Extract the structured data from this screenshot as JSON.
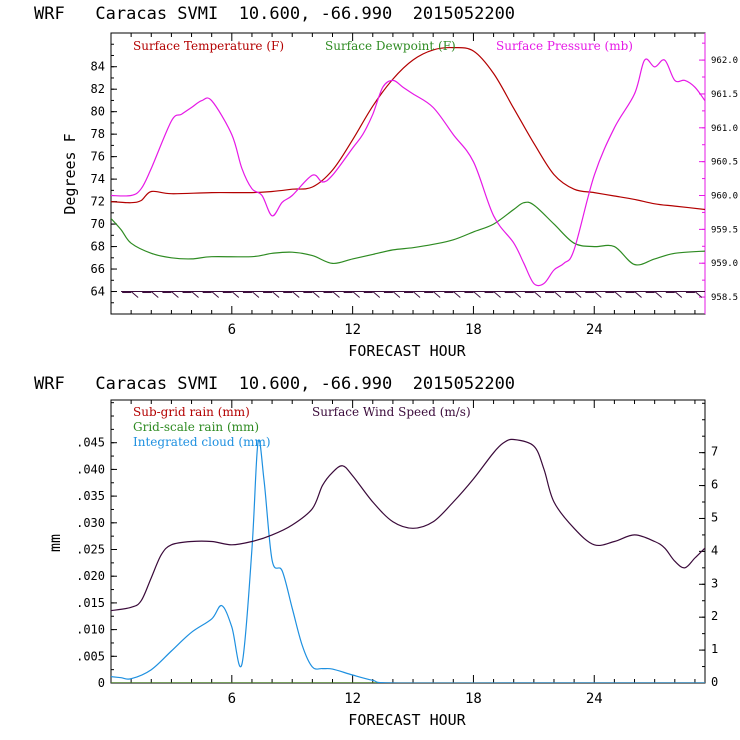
{
  "colors": {
    "temperature": "#b30000",
    "dewpoint": "#2e8b22",
    "pressure": "#e619e6",
    "subgrid_rain": "#b30000",
    "gridscale_rain": "#2e8b22",
    "cloud": "#1e90e0",
    "wind": "#3a0a3a"
  },
  "chart_data": [
    {
      "type": "line",
      "title": "WRF   Caracas SVMI  10.600, -66.990  2015052200",
      "xlabel": "FORECAST HOUR",
      "ylabel": "Degrees F",
      "xlim": [
        0,
        29.5
      ],
      "ylim": [
        62,
        87
      ],
      "y2lim": [
        958.25,
        962.4
      ],
      "xticks": [
        "6",
        "12",
        "18",
        "24"
      ],
      "xtick_values": [
        6,
        12,
        18,
        24
      ],
      "yticks": [
        "64",
        "66",
        "68",
        "70",
        "72",
        "74",
        "76",
        "78",
        "80",
        "82",
        "84"
      ],
      "ytick_values": [
        64,
        66,
        68,
        70,
        72,
        74,
        76,
        78,
        80,
        82,
        84
      ],
      "y2ticks": [
        "958.5",
        "959.0",
        "959.5",
        "960.0",
        "960.5",
        "961.0",
        "961.5",
        "962.0"
      ],
      "y2tick_values": [
        958.5,
        959.0,
        959.5,
        960.0,
        960.5,
        961.0,
        961.5,
        962.0
      ],
      "legend": [
        "Surface Temperature (F)",
        "Surface Dewpoint (F)",
        "Surface Pressure (mb)"
      ],
      "series": [
        {
          "name": "Surface Temperature (F)",
          "axis": "left",
          "x": [
            0,
            1,
            1.5,
            2,
            3,
            5,
            7,
            8,
            9,
            10,
            11,
            12,
            13,
            14,
            15,
            16,
            17,
            18,
            19,
            20,
            21,
            22,
            23,
            24,
            25,
            26,
            27,
            28,
            29.5
          ],
          "values": [
            72.0,
            71.9,
            72.1,
            72.9,
            72.7,
            72.8,
            72.8,
            72.9,
            73.1,
            73.3,
            74.8,
            77.5,
            80.5,
            82.9,
            84.6,
            85.5,
            85.7,
            85.4,
            83.4,
            80.3,
            77.2,
            74.4,
            73.1,
            72.8,
            72.5,
            72.2,
            71.8,
            71.6,
            71.3
          ]
        },
        {
          "name": "Surface Dewpoint (F)",
          "axis": "left",
          "x": [
            0,
            0.5,
            1,
            2,
            3,
            4,
            5,
            7,
            8,
            9,
            10,
            11,
            12,
            13,
            14,
            15,
            16,
            17,
            18,
            19,
            20,
            20.5,
            21,
            22,
            23,
            24,
            25,
            26,
            27,
            28,
            29.5
          ],
          "values": [
            70.5,
            69.5,
            68.3,
            67.4,
            67.0,
            66.9,
            67.1,
            67.1,
            67.4,
            67.5,
            67.2,
            66.5,
            66.9,
            67.3,
            67.7,
            67.9,
            68.2,
            68.6,
            69.3,
            70.0,
            71.3,
            71.9,
            71.7,
            70.0,
            68.3,
            68.0,
            68.0,
            66.4,
            66.9,
            67.4,
            67.6
          ]
        },
        {
          "name": "Surface Pressure (mb)",
          "axis": "right",
          "x": [
            0,
            1,
            1.5,
            2,
            3,
            3.5,
            4,
            4.5,
            5,
            6,
            6.5,
            7,
            7.5,
            8,
            8.5,
            9,
            10,
            10.5,
            11,
            12,
            12.5,
            13,
            13.5,
            14,
            14.5,
            15,
            16,
            17,
            18,
            19,
            20,
            20.5,
            21,
            21.5,
            22,
            22.5,
            23,
            24,
            25,
            26,
            26.5,
            27,
            27.5,
            28,
            28.5,
            29,
            29.5
          ],
          "values": [
            960.0,
            960.0,
            960.1,
            960.4,
            961.1,
            961.2,
            961.3,
            961.4,
            961.4,
            960.9,
            960.4,
            960.1,
            960.0,
            959.7,
            959.9,
            960.0,
            960.3,
            960.2,
            960.3,
            960.7,
            960.9,
            961.2,
            961.6,
            961.7,
            961.6,
            961.5,
            961.3,
            960.9,
            960.5,
            959.7,
            959.3,
            959.0,
            958.7,
            958.7,
            958.9,
            959.0,
            959.2,
            960.3,
            961.0,
            961.5,
            962.0,
            961.9,
            962.0,
            961.7,
            961.7,
            961.6,
            961.4
          ]
        }
      ],
      "wind_barbs": {
        "description": "Wind barbs along the 64 F line (calm / light winds)",
        "x": [
          1,
          2,
          3,
          4,
          5,
          6,
          7,
          8,
          9,
          10,
          11,
          12,
          13,
          14,
          15,
          16,
          17,
          18,
          19,
          20,
          21,
          22,
          23,
          24,
          25,
          26,
          27,
          28,
          29
        ]
      }
    },
    {
      "type": "line",
      "title": "WRF   Caracas SVMI  10.600, -66.990  2015052200",
      "xlabel": "FORECAST HOUR",
      "ylabel": "mm",
      "xlim": [
        0,
        29.5
      ],
      "ylim": [
        0,
        0.053
      ],
      "y2lim": [
        0,
        8.6
      ],
      "xticks": [
        "6",
        "12",
        "18",
        "24"
      ],
      "xtick_values": [
        6,
        12,
        18,
        24
      ],
      "yticks": [
        "0",
        ".005",
        ".010",
        ".015",
        ".020",
        ".025",
        ".030",
        ".035",
        ".040",
        ".045"
      ],
      "ytick_values": [
        0,
        0.005,
        0.01,
        0.015,
        0.02,
        0.025,
        0.03,
        0.035,
        0.04,
        0.045
      ],
      "y2ticks": [
        "0",
        "1",
        "2",
        "3",
        "4",
        "5",
        "6",
        "7"
      ],
      "y2tick_values": [
        0,
        1,
        2,
        3,
        4,
        5,
        6,
        7
      ],
      "legend": [
        "Sub-grid rain (mm)",
        "Grid-scale rain (mm)",
        "Integrated cloud (mm)",
        "Surface Wind Speed (m/s)"
      ],
      "series": [
        {
          "name": "Sub-grid rain (mm)",
          "axis": "left",
          "x": [
            0,
            29.5
          ],
          "values": [
            0,
            0
          ]
        },
        {
          "name": "Grid-scale rain (mm)",
          "axis": "left",
          "x": [
            0,
            29.5
          ],
          "values": [
            0,
            0
          ]
        },
        {
          "name": "Integrated cloud (mm)",
          "axis": "left",
          "x": [
            0,
            0.5,
            1,
            2,
            3,
            4,
            5,
            5.5,
            6,
            6.5,
            7,
            7.3,
            7.6,
            8,
            8.5,
            9,
            9.5,
            10,
            10.5,
            11,
            12,
            13,
            14,
            20,
            24,
            29.5
          ],
          "values": [
            0.0012,
            0.001,
            0.0008,
            0.0025,
            0.006,
            0.0095,
            0.012,
            0.0145,
            0.0105,
            0.0035,
            0.025,
            0.045,
            0.038,
            0.023,
            0.021,
            0.014,
            0.007,
            0.003,
            0.0027,
            0.0026,
            0.0015,
            0.0005,
            0.0,
            0.0,
            0.0,
            0.0
          ]
        },
        {
          "name": "Surface Wind Speed (m/s)",
          "axis": "right",
          "x": [
            0,
            1,
            1.5,
            2,
            2.5,
            3,
            4,
            5,
            6,
            7,
            8,
            9,
            10,
            10.5,
            11,
            11.5,
            12,
            13,
            14,
            15,
            16,
            17,
            18,
            19,
            19.5,
            20,
            21,
            21.5,
            22,
            23,
            24,
            25,
            26,
            27,
            27.5,
            28,
            28.5,
            29,
            29.5
          ],
          "values": [
            2.2,
            2.3,
            2.5,
            3.2,
            3.9,
            4.2,
            4.3,
            4.3,
            4.2,
            4.3,
            4.5,
            4.8,
            5.3,
            6.0,
            6.4,
            6.6,
            6.3,
            5.5,
            4.9,
            4.7,
            4.9,
            5.5,
            6.2,
            7.0,
            7.3,
            7.4,
            7.2,
            6.5,
            5.5,
            4.7,
            4.2,
            4.3,
            4.5,
            4.3,
            4.1,
            3.7,
            3.5,
            3.8,
            4.1
          ]
        }
      ]
    }
  ]
}
